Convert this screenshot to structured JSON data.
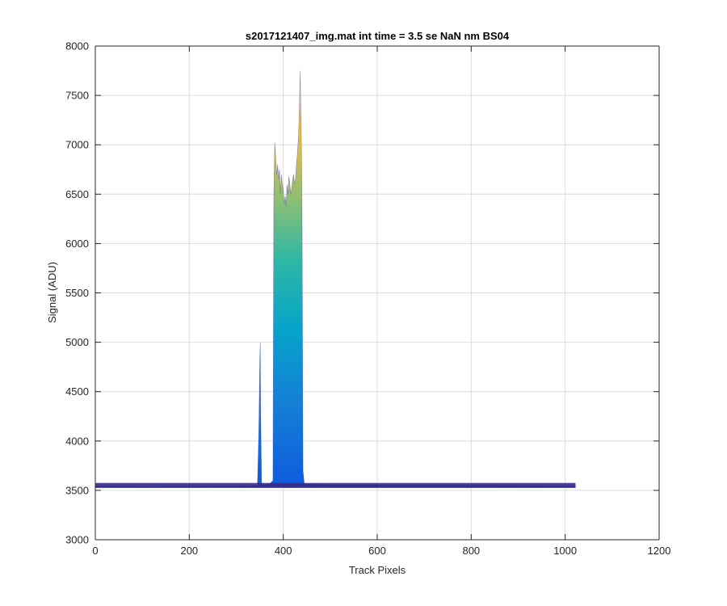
{
  "chart_data": {
    "type": "area",
    "title": "s2017121407_img.mat int time = 3.5 se  NaN nm BS04",
    "xlabel": "Track Pixels",
    "ylabel": "Signal (ADU)",
    "xlim": [
      0,
      1200
    ],
    "ylim": [
      3000,
      8000
    ],
    "xticks": [
      0,
      200,
      400,
      600,
      800,
      1000,
      1200
    ],
    "yticks": [
      3000,
      3500,
      4000,
      4500,
      5000,
      5500,
      6000,
      6500,
      7000,
      7500,
      8000
    ],
    "grid": true,
    "colormap": "parula",
    "colors": {
      "low": "#352a87",
      "mid_low": "#0f5cdd",
      "mid": "#1481d6",
      "mid_high": "#06a4ca",
      "teal": "#2eb7a4",
      "green": "#87bf77",
      "yellow_green": "#d1bb59",
      "orange": "#fec832",
      "high": "#f9fb0e"
    },
    "series": [
      {
        "x": [
          0,
          100,
          200,
          300,
          345,
          348,
          350,
          351,
          352,
          354,
          358,
          370,
          378,
          380,
          382,
          384,
          386,
          388,
          390,
          392,
          394,
          396,
          398,
          400,
          402,
          404,
          406,
          408,
          410,
          412,
          414,
          416,
          418,
          420,
          422,
          424,
          426,
          428,
          430,
          432,
          434,
          436,
          438,
          440,
          442,
          445,
          460,
          500,
          600,
          700,
          800,
          900,
          1000,
          1022
        ],
        "y": [
          3545,
          3542,
          3543,
          3546,
          3548,
          4100,
          4800,
          5000,
          4300,
          3560,
          3555,
          3560,
          3600,
          6500,
          7020,
          6850,
          6700,
          6800,
          6650,
          6750,
          6500,
          6700,
          6600,
          6550,
          6400,
          6480,
          6380,
          6600,
          6500,
          6680,
          6600,
          6500,
          6560,
          6650,
          6700,
          6600,
          6650,
          6800,
          6900,
          7050,
          7300,
          7750,
          7200,
          6400,
          3700,
          3560,
          3560,
          3556,
          3553,
          3552,
          3550,
          3548,
          3545,
          3545
        ]
      }
    ]
  }
}
